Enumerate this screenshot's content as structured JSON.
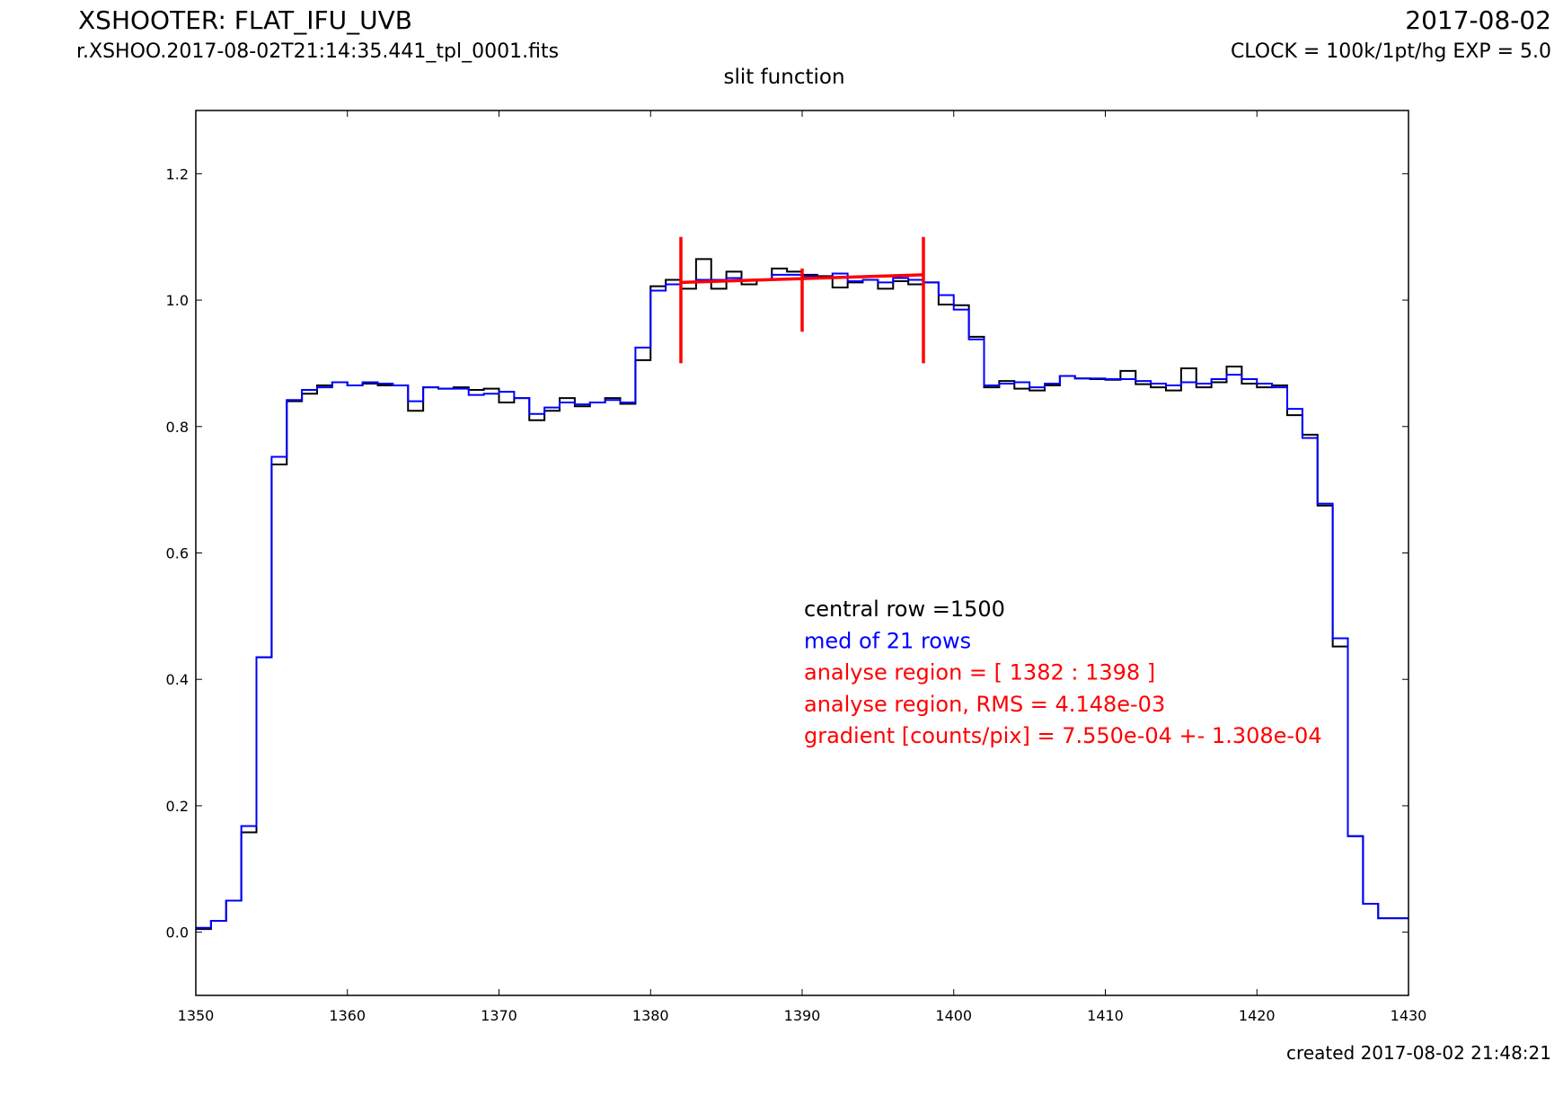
{
  "header": {
    "title": "XSHOOTER: FLAT_IFU_UVB",
    "filename": "r.XSHOO.2017-08-02T21:14:35.441_tpl_0001.fits",
    "date": "2017-08-02",
    "clock": "CLOCK = 100k/1pt/hg EXP = 5.0"
  },
  "footer": {
    "created": "created 2017-08-02 21:48:21"
  },
  "chart_data": {
    "type": "line",
    "title": "slit function",
    "xlabel": "",
    "ylabel": "",
    "xlim": [
      1350,
      1430
    ],
    "ylim": [
      -0.1,
      1.3
    ],
    "xticks": [
      1350,
      1360,
      1370,
      1380,
      1390,
      1400,
      1410,
      1420,
      1430
    ],
    "yticks": [
      0.0,
      0.2,
      0.4,
      0.6,
      0.8,
      1.0,
      1.2
    ],
    "grid": false,
    "colors": {
      "central": "#000000",
      "median": "#0000ff",
      "analysis": "#ff0000"
    },
    "x": [
      1350,
      1351,
      1352,
      1353,
      1354,
      1355,
      1356,
      1357,
      1358,
      1359,
      1360,
      1361,
      1362,
      1363,
      1364,
      1365,
      1366,
      1367,
      1368,
      1369,
      1370,
      1371,
      1372,
      1373,
      1374,
      1375,
      1376,
      1377,
      1378,
      1379,
      1380,
      1381,
      1382,
      1383,
      1384,
      1385,
      1386,
      1387,
      1388,
      1389,
      1390,
      1391,
      1392,
      1393,
      1394,
      1395,
      1396,
      1397,
      1398,
      1399,
      1400,
      1401,
      1402,
      1403,
      1404,
      1405,
      1406,
      1407,
      1408,
      1409,
      1410,
      1411,
      1412,
      1413,
      1414,
      1415,
      1416,
      1417,
      1418,
      1419,
      1420,
      1421,
      1422,
      1423,
      1424,
      1425,
      1426,
      1427,
      1428,
      1429
    ],
    "series": [
      {
        "key": "central",
        "style": "step",
        "values": [
          0.005,
          0.018,
          0.05,
          0.158,
          0.435,
          0.74,
          0.84,
          0.852,
          0.865,
          0.87,
          0.865,
          0.868,
          0.865,
          0.865,
          0.825,
          0.862,
          0.86,
          0.862,
          0.858,
          0.86,
          0.838,
          0.845,
          0.81,
          0.825,
          0.845,
          0.832,
          0.838,
          0.845,
          0.836,
          0.905,
          1.022,
          1.032,
          1.018,
          1.065,
          1.018,
          1.045,
          1.025,
          1.032,
          1.05,
          1.045,
          1.04,
          1.038,
          1.02,
          1.028,
          1.032,
          1.018,
          1.03,
          1.025,
          1.028,
          0.993,
          0.992,
          0.942,
          0.862,
          0.872,
          0.86,
          0.857,
          0.865,
          0.88,
          0.876,
          0.875,
          0.874,
          0.888,
          0.867,
          0.862,
          0.857,
          0.892,
          0.862,
          0.87,
          0.895,
          0.868,
          0.862,
          0.865,
          0.818,
          0.787,
          0.675,
          0.452,
          0.152,
          0.045,
          0.022,
          0.022
        ]
      },
      {
        "key": "median",
        "style": "step",
        "values": [
          0.007,
          0.018,
          0.05,
          0.168,
          0.435,
          0.752,
          0.842,
          0.858,
          0.862,
          0.87,
          0.865,
          0.87,
          0.868,
          0.865,
          0.84,
          0.862,
          0.86,
          0.86,
          0.85,
          0.852,
          0.855,
          0.845,
          0.82,
          0.83,
          0.838,
          0.835,
          0.838,
          0.842,
          0.838,
          0.925,
          1.015,
          1.025,
          1.028,
          1.032,
          1.032,
          1.035,
          1.032,
          1.032,
          1.04,
          1.04,
          1.038,
          1.035,
          1.042,
          1.03,
          1.032,
          1.028,
          1.035,
          1.032,
          1.028,
          1.008,
          0.985,
          0.938,
          0.865,
          0.868,
          0.87,
          0.862,
          0.868,
          0.88,
          0.876,
          0.876,
          0.875,
          0.875,
          0.872,
          0.868,
          0.865,
          0.87,
          0.868,
          0.875,
          0.882,
          0.875,
          0.868,
          0.862,
          0.828,
          0.782,
          0.678,
          0.465,
          0.152,
          0.045,
          0.022,
          0.022
        ]
      }
    ],
    "analysis": {
      "markers": [
        {
          "x": 1382,
          "y_range": [
            0.9,
            1.1
          ]
        },
        {
          "x": 1390,
          "y_range": [
            0.95,
            1.05
          ]
        },
        {
          "x": 1398,
          "y_range": [
            0.9,
            1.1
          ]
        }
      ],
      "fit_line": {
        "x": [
          1382,
          1398
        ],
        "y": [
          1.028,
          1.04
        ]
      }
    },
    "annotations": [
      {
        "key": "central",
        "text": "central row =1500"
      },
      {
        "key": "median",
        "text": "med of 21 rows"
      },
      {
        "key": "analysis",
        "text": "analyse region = [ 1382 : 1398 ]"
      },
      {
        "key": "analysis",
        "text": "analyse region, RMS = 4.148e-03"
      },
      {
        "key": "analysis",
        "text": "gradient [counts/pix] = 7.550e-04 +- 1.308e-04"
      }
    ]
  }
}
